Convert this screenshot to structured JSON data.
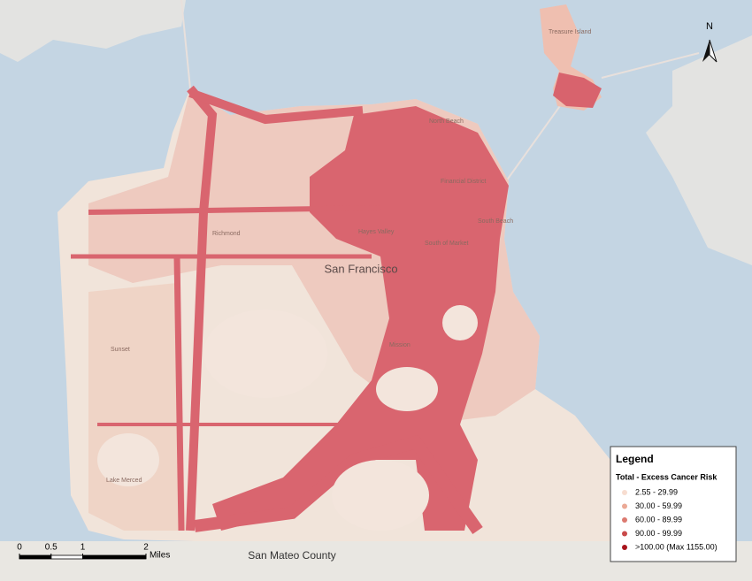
{
  "map": {
    "city_label": "San Francisco",
    "county_label": "San Mateo County",
    "north": "N",
    "places": [
      "Treasure Island",
      "North Beach",
      "Financial District",
      "South Beach",
      "South of Market",
      "Hayes Valley",
      "Richmond",
      "Sunset",
      "Lake Merced",
      "Mission"
    ],
    "scale": {
      "ticks": [
        0,
        0.5,
        1,
        2
      ],
      "unit": "Miles"
    },
    "legend": {
      "title": "Legend",
      "subtitle": "Total - Excess Cancer Risk",
      "items": [
        {
          "label": "2.55 - 29.99",
          "color": "#f7ddd0"
        },
        {
          "label": "30.00 - 59.99",
          "color": "#eba996"
        },
        {
          "label": "60.00 - 89.99",
          "color": "#dc7a70"
        },
        {
          "label": "90.00 - 99.99",
          "color": "#c94a4a"
        },
        {
          "label": ">100.00 (Max 1155.00)",
          "color": "#a8141c"
        }
      ]
    }
  }
}
